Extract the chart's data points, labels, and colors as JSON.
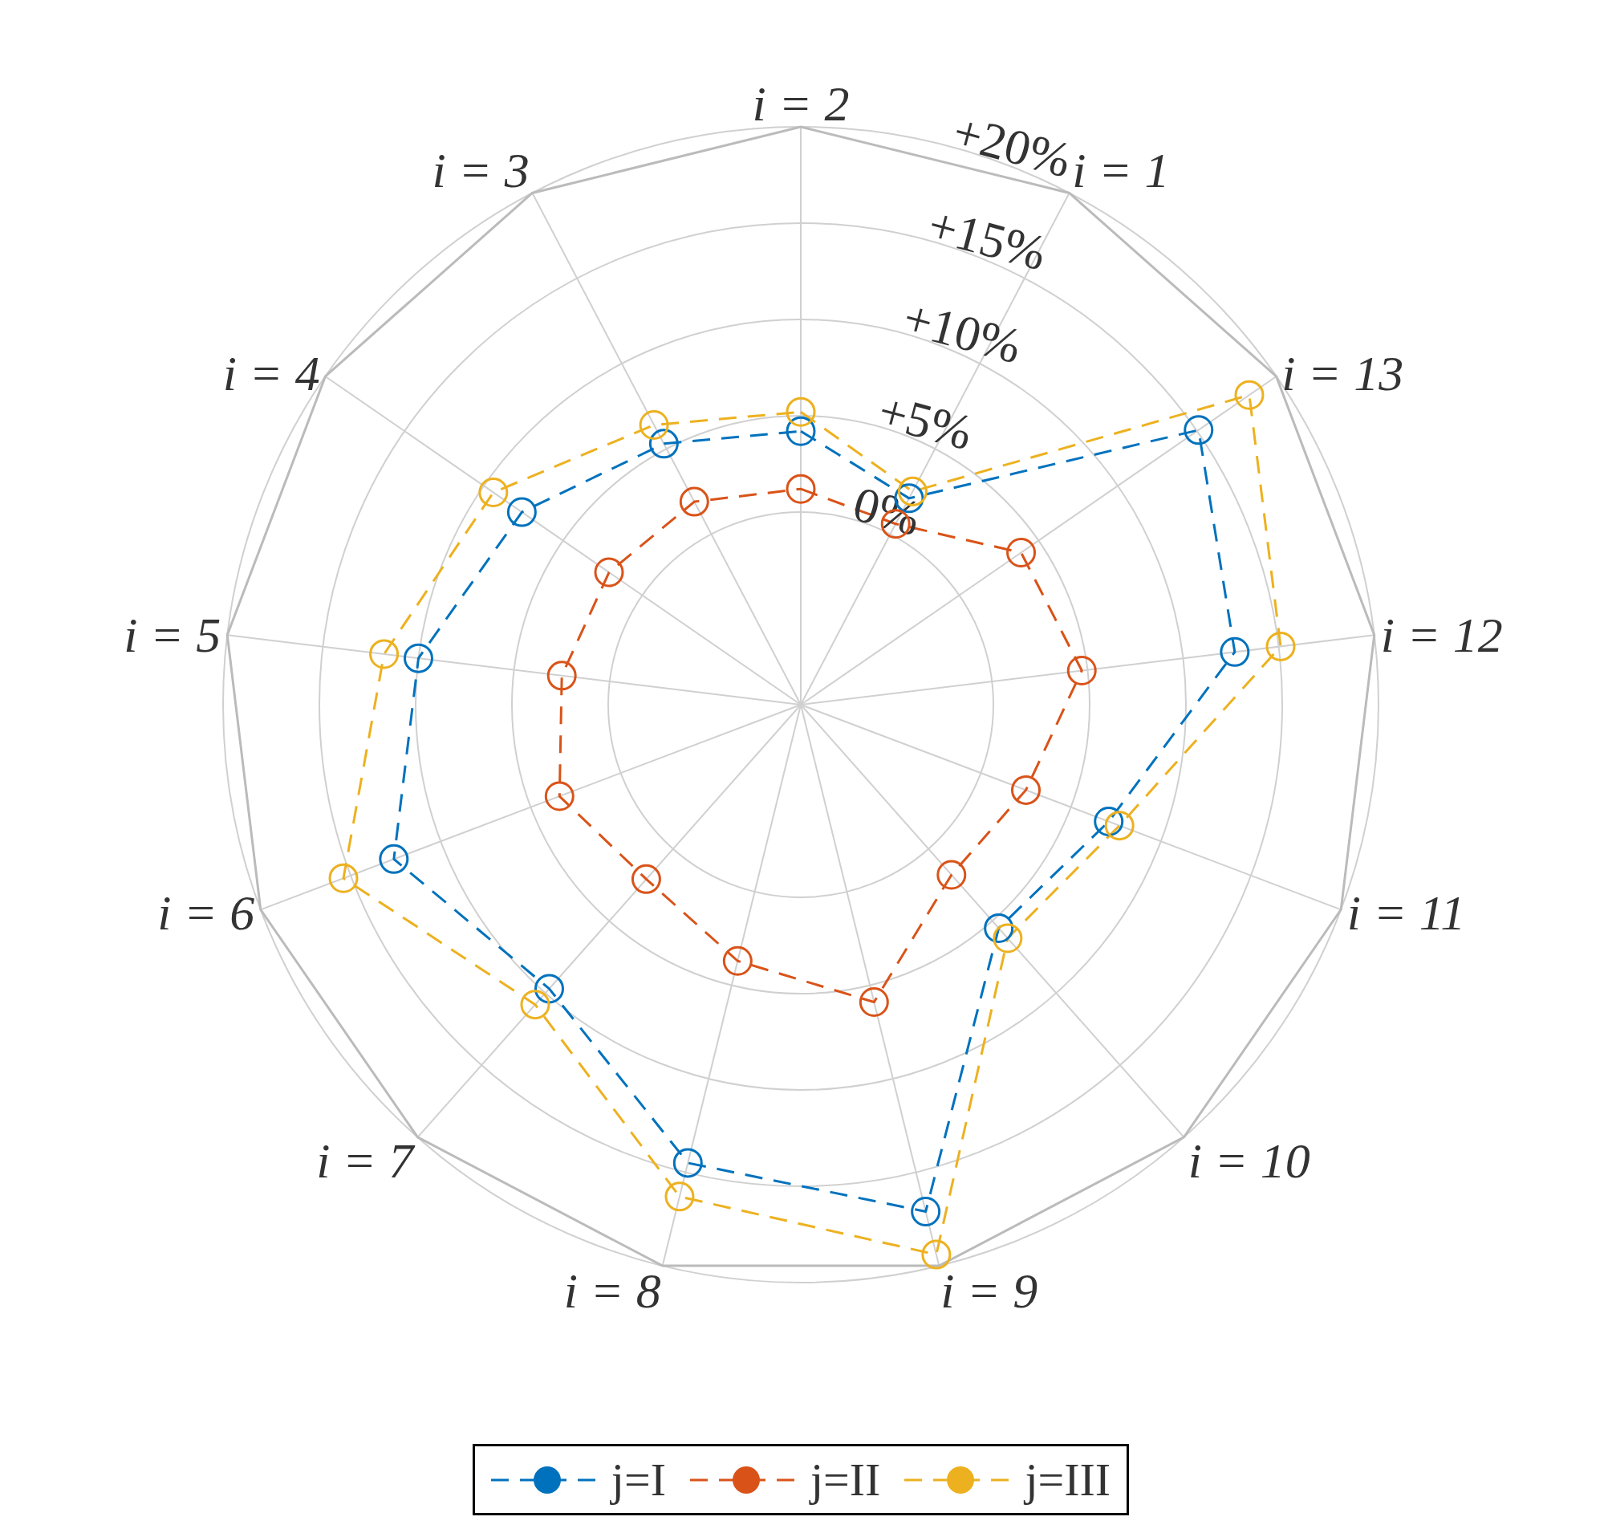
{
  "chart_data": {
    "type": "radar",
    "categories": [
      "i = 2",
      "i = 1",
      "i = 13",
      "i = 12",
      "i = 11",
      "i = 10",
      "i = 9",
      "i = 8",
      "i = 7",
      "i = 6",
      "i = 5",
      "i = 4",
      "i = 3"
    ],
    "series": [
      {
        "name": "j=I",
        "color": "#0072bd",
        "values": [
          4.2,
          2.1,
          15.1,
          12.7,
          7.1,
          5.5,
          17.1,
          14.5,
          9.7,
          12.6,
          10.0,
          7.6,
          5.3
        ]
      },
      {
        "name": "j=II",
        "color": "#d95319",
        "values": [
          1.2,
          0.6,
          3.9,
          4.7,
          2.5,
          1.8,
          5.9,
          3.7,
          2.1,
          3.4,
          2.5,
          2.1,
          1.9
        ]
      },
      {
        "name": "j=III",
        "color": "#edb120",
        "values": [
          5.2,
          2.5,
          18.3,
          15.1,
          7.7,
          6.2,
          19.4,
          16.3,
          10.8,
          15.4,
          11.8,
          9.4,
          6.4
        ]
      }
    ],
    "ylim": [
      -10,
      20
    ],
    "yticks": [
      {
        "value": 0,
        "label": "0%"
      },
      {
        "value": 5,
        "label": "+5%"
      },
      {
        "value": 10,
        "label": "+10%"
      },
      {
        "value": 15,
        "label": "+15%"
      },
      {
        "value": 20,
        "label": "+20%"
      }
    ],
    "grid": true,
    "legend": "bottom",
    "marker": "circle",
    "line_style": "dashed"
  }
}
